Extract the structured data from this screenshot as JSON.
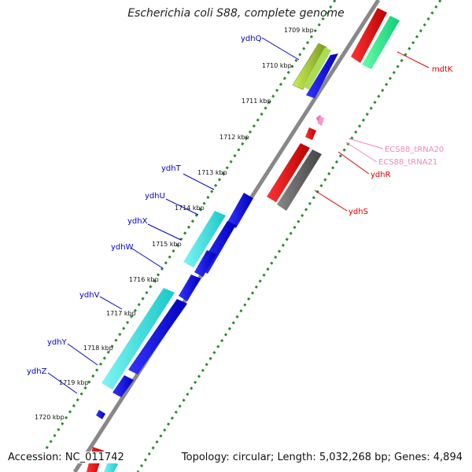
{
  "title": "Escherichia coli S88, complete genome",
  "footer": {
    "accession": "Accession: NC_011742",
    "info": "Topology: circular; Length: 5,032,268 bp; Genes: 4,894"
  },
  "colors": {
    "background": "#ffffff",
    "backbone": "#888888",
    "tick_dots": "#2e8b2e",
    "gene_blue": "#0000ee",
    "gene_cyan": "#22dddd",
    "gene_red": "#ee1111",
    "gene_green": "#22ee88",
    "gene_olive": "#99cc33",
    "gene_gray": "#666666",
    "trna_pink": "#ee66aa"
  },
  "ticks": [
    "1709 kbp",
    "1710 kbp",
    "1711 kbp",
    "1712 kbp",
    "1713 kbp",
    "1714 kbp",
    "1715 kbp",
    "1716 kbp",
    "1717 kbp",
    "1718 kbp",
    "1719 kbp",
    "1720 kbp"
  ],
  "genes": [
    {
      "name": "ydhQ",
      "strand": "minus",
      "color": "olive"
    },
    {
      "name": "ydhT",
      "strand": "minus",
      "color": "blue"
    },
    {
      "name": "ydhU",
      "strand": "minus",
      "color": "cyan"
    },
    {
      "name": "ydhX",
      "strand": "minus",
      "color": "blue"
    },
    {
      "name": "ydhW",
      "strand": "minus",
      "color": "cyan"
    },
    {
      "name": "ydhV",
      "strand": "minus",
      "color": "cyan"
    },
    {
      "name": "ydhY",
      "strand": "minus",
      "color": "blue"
    },
    {
      "name": "ydhZ",
      "strand": "minus",
      "color": "blue"
    },
    {
      "name": "mdtK",
      "strand": "plus",
      "color": "red"
    },
    {
      "name": "ECS88_tRNA20",
      "strand": "plus",
      "color": "pink"
    },
    {
      "name": "ECS88_tRNA21",
      "strand": "plus",
      "color": "pink"
    },
    {
      "name": "ydhR",
      "strand": "plus",
      "color": "red"
    },
    {
      "name": "ydhS",
      "strand": "plus",
      "color": "gray"
    }
  ]
}
